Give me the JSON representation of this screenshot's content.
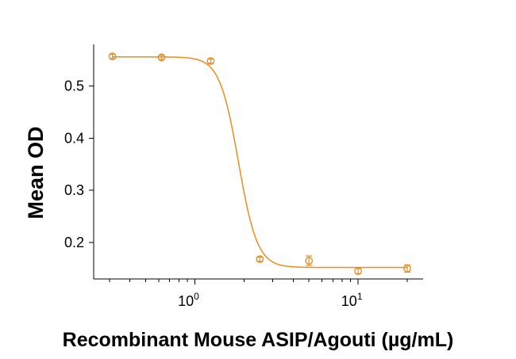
{
  "chart_data": {
    "type": "scatter",
    "title": "",
    "xlabel": "Recombinant Mouse ASIP/Agouti (µg/mL)",
    "ylabel": "Mean OD",
    "x_scale": "log",
    "xlim": [
      0.24,
      25
    ],
    "ylim": [
      0.13,
      0.58
    ],
    "x_major_ticks": [
      1,
      10
    ],
    "x_tick_labels": [
      {
        "base": "10",
        "exp": "0"
      },
      {
        "base": "10",
        "exp": "1"
      }
    ],
    "y_ticks": [
      0.2,
      0.3,
      0.4,
      0.5
    ],
    "y_tick_labels": [
      "0.2",
      "0.3",
      "0.4",
      "0.5"
    ],
    "grid": false,
    "color": "#E88E1E",
    "series": [
      {
        "x": [
          0.3125,
          0.625,
          1.25,
          2.5,
          5,
          10,
          20
        ],
        "y": [
          0.557,
          0.555,
          0.548,
          0.168,
          0.165,
          0.145,
          0.15
        ],
        "y_err": [
          0.004,
          0.004,
          0.004,
          0.004,
          0.009,
          0.005,
          0.007
        ]
      }
    ],
    "fit_curve": {
      "model": "4PL",
      "top": 0.556,
      "bottom": 0.152,
      "ec50": 1.85,
      "hill": 7.5
    }
  }
}
